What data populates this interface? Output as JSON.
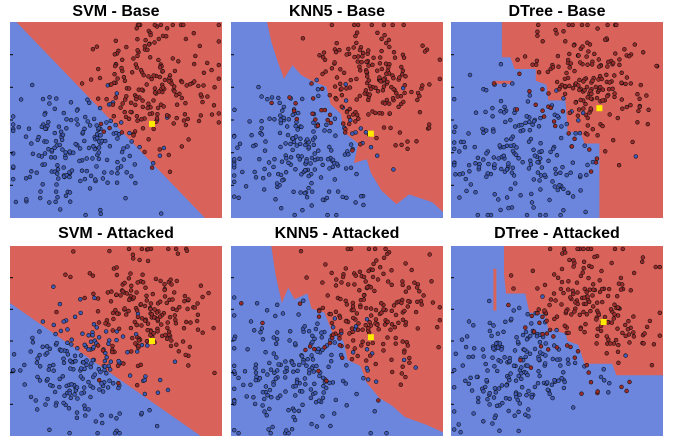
{
  "colors": {
    "class_a_region": "#6b86dc",
    "class_b_region": "#d9635b",
    "class_a_point": "#3f5ab8",
    "class_b_point": "#9b2a2a",
    "point_edge": "#111111",
    "target_point": "#ffea00"
  },
  "chart_data": [
    {
      "type": "scatter",
      "title": "SVM - Base",
      "model": "svm",
      "target": [
        0.67,
        0.52
      ],
      "xlim": [
        0,
        1
      ],
      "ylim": [
        0,
        1
      ]
    },
    {
      "type": "scatter",
      "title": "KNN5 - Base",
      "model": "knn",
      "target": [
        0.66,
        0.57
      ],
      "xlim": [
        0,
        1
      ],
      "ylim": [
        0,
        1
      ]
    },
    {
      "type": "scatter",
      "title": "DTree - Base",
      "model": "dtree",
      "target": [
        0.7,
        0.44
      ],
      "xlim": [
        0,
        1
      ],
      "ylim": [
        0,
        1
      ]
    },
    {
      "type": "scatter",
      "title": "SVM - Attacked",
      "model": "svm",
      "target": [
        0.67,
        0.5
      ],
      "xlim": [
        0,
        1
      ],
      "ylim": [
        0,
        1
      ]
    },
    {
      "type": "scatter",
      "title": "KNN5 - Attacked",
      "model": "knn",
      "target": [
        0.66,
        0.48
      ],
      "xlim": [
        0,
        1
      ],
      "ylim": [
        0,
        1
      ]
    },
    {
      "type": "scatter",
      "title": "DTree - Attacked",
      "model": "dtree",
      "target": [
        0.72,
        0.4
      ],
      "xlim": [
        0,
        1
      ],
      "ylim": [
        0,
        1
      ]
    }
  ]
}
